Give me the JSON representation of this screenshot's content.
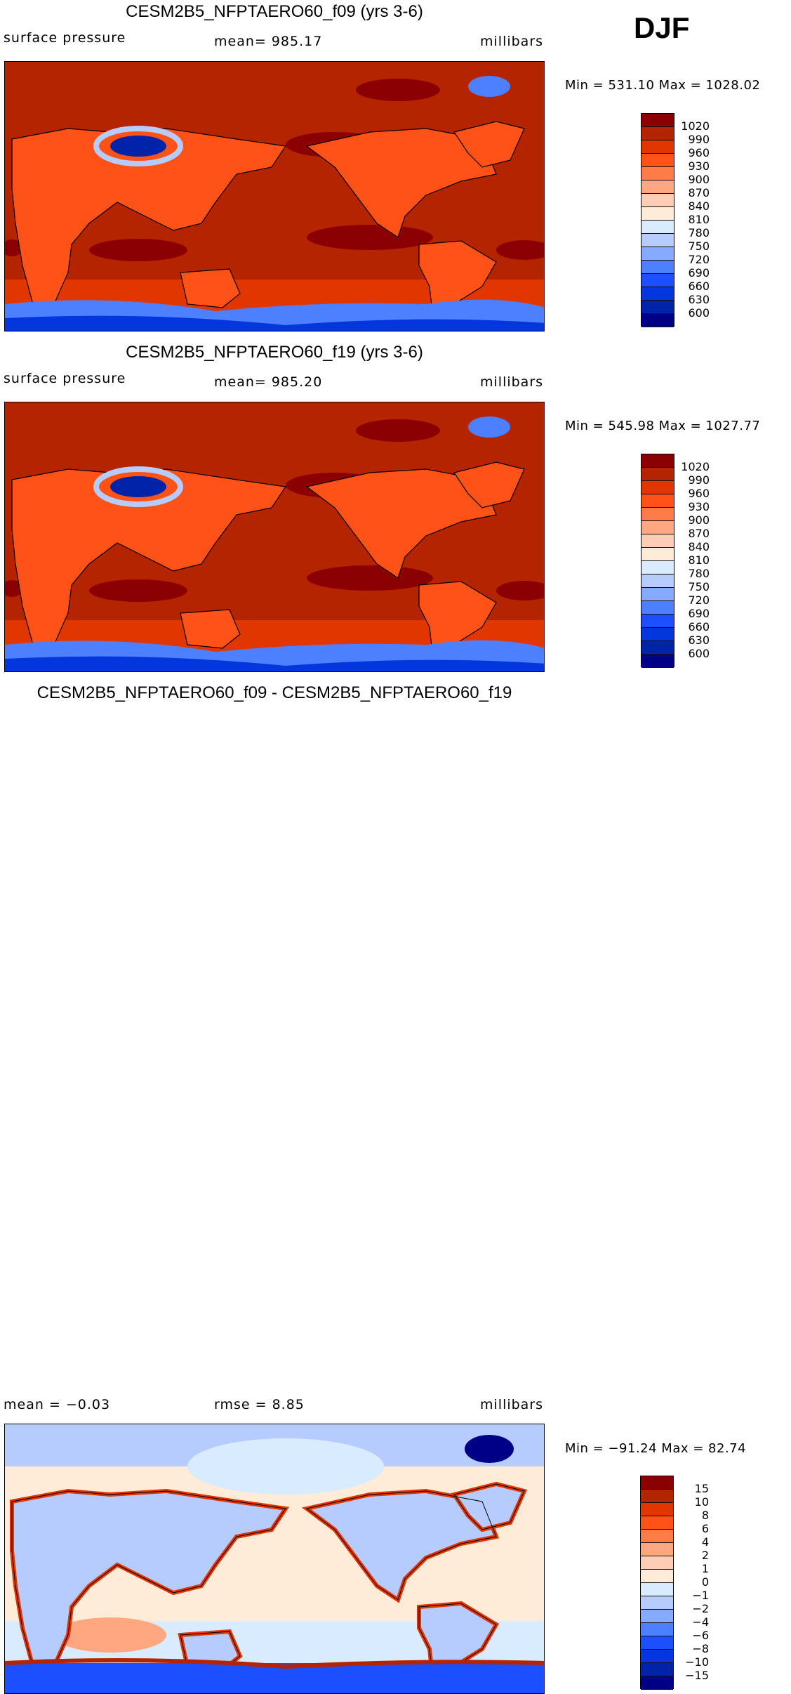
{
  "season": "DJF",
  "colors": [
    "#8b0000",
    "#b42400",
    "#e13600",
    "#ff5216",
    "#ff7b47",
    "#ffa781",
    "#ffccb6",
    "#ffecd8",
    "#d8ebff",
    "#b6ccff",
    "#86aaff",
    "#4d80ff",
    "#1b4fff",
    "#0436de",
    "#0023aa",
    "#000086"
  ],
  "panels": [
    {
      "title": "CESM2B5_NFPTAERO60_f09 (yrs 3-6)",
      "left": "surface  pressure",
      "center": "mean=  985.17",
      "right": "millibars",
      "minmax": "Min  =  531.10  Max  =  1028.02",
      "levels": [
        "1020",
        "990",
        "960",
        "930",
        "900",
        "870",
        "840",
        "810",
        "780",
        "750",
        "720",
        "690",
        "660",
        "630",
        "600"
      ]
    },
    {
      "title": "CESM2B5_NFPTAERO60_f19 (yrs 3-6)",
      "left": "surface  pressure",
      "center": "mean=  985.20",
      "right": "millibars",
      "minmax": "Min  =  545.98  Max  =  1027.77",
      "levels": [
        "1020",
        "990",
        "960",
        "930",
        "900",
        "870",
        "840",
        "810",
        "780",
        "750",
        "720",
        "690",
        "660",
        "630",
        "600"
      ]
    },
    {
      "title": "CESM2B5_NFPTAERO60_f09 - CESM2B5_NFPTAERO60_f19",
      "left": "mean  =    −0.03",
      "center": "rmse  =     8.85",
      "right": "millibars",
      "minmax": "Min  =  −91.24  Max  =    82.74",
      "levels": [
        "15",
        "10",
        "8",
        "6",
        "4",
        "2",
        "1",
        "0",
        "−1",
        "−2",
        "−4",
        "−6",
        "−8",
        "−10",
        "−15"
      ]
    }
  ]
}
